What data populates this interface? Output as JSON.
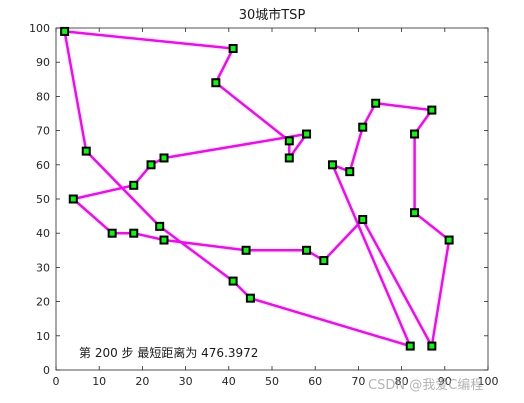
{
  "chart_data": {
    "type": "line",
    "title": "30城市TSP",
    "xlabel": "",
    "ylabel": "",
    "xlim": [
      0,
      100
    ],
    "ylim": [
      0,
      100
    ],
    "xticks": [
      0,
      10,
      20,
      30,
      40,
      50,
      60,
      70,
      80,
      90,
      100
    ],
    "yticks": [
      0,
      10,
      20,
      30,
      40,
      50,
      60,
      70,
      80,
      90,
      100
    ],
    "grid": false,
    "annotation": "第 200 步  最短距离为 476.3972",
    "series": [
      {
        "style": "closed route with square markers",
        "x": [
          2,
          41,
          37,
          54,
          54,
          58,
          25,
          22,
          18,
          4,
          13,
          18,
          25,
          44,
          58,
          62,
          71,
          87,
          91,
          83,
          83,
          87,
          74,
          71,
          68,
          64,
          82,
          45,
          41,
          24,
          7
        ],
        "y": [
          99,
          94,
          84,
          67,
          62,
          69,
          62,
          60,
          54,
          50,
          40,
          40,
          38,
          35,
          35,
          32,
          44,
          7,
          38,
          46,
          69,
          76,
          78,
          71,
          58,
          60,
          7,
          21,
          26,
          42,
          64
        ]
      }
    ]
  },
  "colors": {
    "route": "#ff00ff",
    "marker_fill": "#00ff00",
    "marker_edge": "#000000",
    "axes": "#262626"
  },
  "watermark": "CSDN @我爱C编程"
}
